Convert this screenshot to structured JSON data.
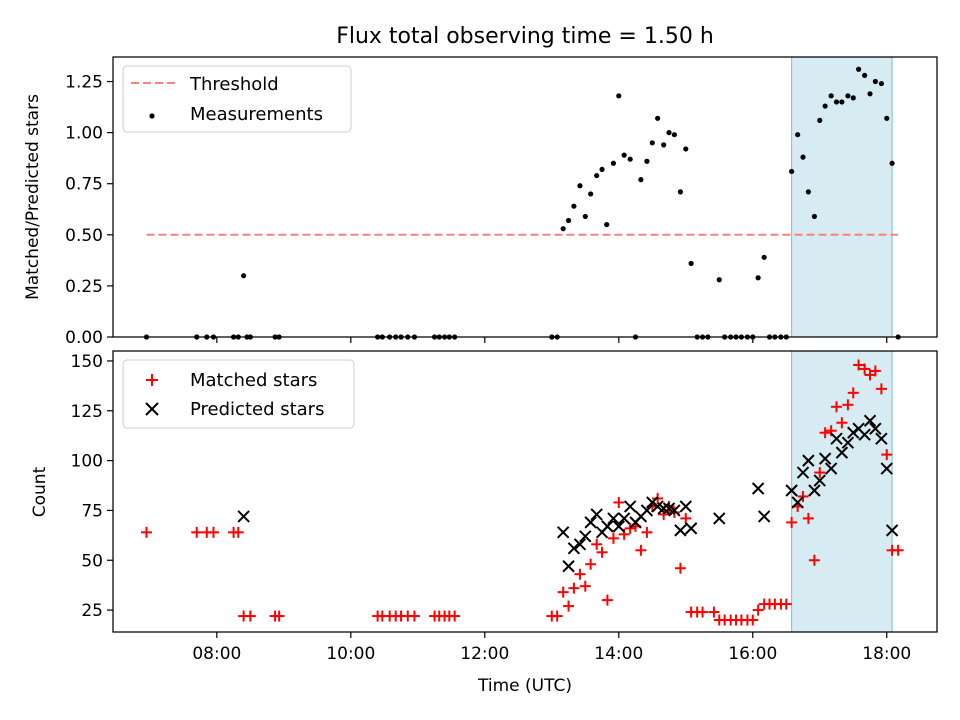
{
  "chart_data": [
    {
      "type": "scatter",
      "title": "Flux total observing time = 1.50 h",
      "ylabel": "Matched/Predicted stars",
      "xlabel": "",
      "xlim": [
        6.45,
        18.75
      ],
      "ylim": [
        0.0,
        1.37
      ],
      "yticks": [
        0.0,
        0.25,
        0.5,
        0.75,
        1.0,
        1.25
      ],
      "ytick_labels": [
        "0.00",
        "0.25",
        "0.50",
        "0.75",
        "1.00",
        "1.25"
      ],
      "legend": {
        "position": "top-left",
        "entries": [
          "Threshold",
          "Measurements"
        ]
      },
      "highlight_band": {
        "x": [
          16.58,
          18.08
        ],
        "color": "#add8e6"
      },
      "threshold": {
        "name": "Threshold",
        "value": 0.5,
        "x": [
          6.95,
          18.17
        ],
        "color": "#ff7f7f",
        "style": "dashed"
      },
      "series": [
        {
          "name": "Measurements",
          "color": "#000000",
          "marker": "dot",
          "points": [
            [
              6.95,
              0
            ],
            [
              7.7,
              0
            ],
            [
              7.85,
              0
            ],
            [
              7.95,
              0
            ],
            [
              8.25,
              0
            ],
            [
              8.32,
              0
            ],
            [
              8.4,
              0.3
            ],
            [
              8.45,
              0
            ],
            [
              8.5,
              0
            ],
            [
              8.87,
              0
            ],
            [
              8.93,
              0
            ],
            [
              10.4,
              0
            ],
            [
              10.47,
              0
            ],
            [
              10.58,
              0
            ],
            [
              10.67,
              0
            ],
            [
              10.75,
              0
            ],
            [
              10.85,
              0
            ],
            [
              10.95,
              0
            ],
            [
              11.25,
              0
            ],
            [
              11.32,
              0
            ],
            [
              11.4,
              0
            ],
            [
              11.47,
              0
            ],
            [
              11.55,
              0
            ],
            [
              13.0,
              0
            ],
            [
              13.08,
              0
            ],
            [
              13.17,
              0.53
            ],
            [
              13.25,
              0.57
            ],
            [
              13.33,
              0.64
            ],
            [
              13.42,
              0.74
            ],
            [
              13.5,
              0.59
            ],
            [
              13.58,
              0.7
            ],
            [
              13.67,
              0.79
            ],
            [
              13.75,
              0.82
            ],
            [
              13.82,
              0.55
            ],
            [
              13.92,
              0.85
            ],
            [
              14.0,
              1.18
            ],
            [
              14.08,
              0.89
            ],
            [
              14.17,
              0.87
            ],
            [
              14.25,
              0
            ],
            [
              14.33,
              0.77
            ],
            [
              14.42,
              0.86
            ],
            [
              14.5,
              0.95
            ],
            [
              14.58,
              1.07
            ],
            [
              14.67,
              0.94
            ],
            [
              14.75,
              1.0
            ],
            [
              14.83,
              0.99
            ],
            [
              14.92,
              0.71
            ],
            [
              15.0,
              0.92
            ],
            [
              15.08,
              0.36
            ],
            [
              15.17,
              0
            ],
            [
              15.25,
              0
            ],
            [
              15.33,
              0
            ],
            [
              15.5,
              0.28
            ],
            [
              15.58,
              0
            ],
            [
              15.67,
              0
            ],
            [
              15.75,
              0
            ],
            [
              15.83,
              0
            ],
            [
              15.92,
              0
            ],
            [
              16.0,
              0
            ],
            [
              16.08,
              0.29
            ],
            [
              16.17,
              0.39
            ],
            [
              16.25,
              0
            ],
            [
              16.33,
              0
            ],
            [
              16.42,
              0
            ],
            [
              16.5,
              0
            ],
            [
              16.58,
              0.81
            ],
            [
              16.67,
              0.99
            ],
            [
              16.75,
              0.88
            ],
            [
              16.83,
              0.71
            ],
            [
              16.92,
              0.59
            ],
            [
              17.0,
              1.06
            ],
            [
              17.08,
              1.13
            ],
            [
              17.17,
              1.18
            ],
            [
              17.25,
              1.15
            ],
            [
              17.33,
              1.15
            ],
            [
              17.42,
              1.18
            ],
            [
              17.5,
              1.17
            ],
            [
              17.58,
              1.31
            ],
            [
              17.67,
              1.28
            ],
            [
              17.75,
              1.19
            ],
            [
              17.83,
              1.25
            ],
            [
              17.92,
              1.24
            ],
            [
              18.0,
              1.07
            ],
            [
              18.08,
              0.85
            ],
            [
              18.17,
              0
            ]
          ]
        }
      ]
    },
    {
      "type": "scatter",
      "title": "",
      "ylabel": "Count",
      "xlabel": "Time (UTC)",
      "xlim": [
        6.45,
        18.75
      ],
      "ylim": [
        14,
        155
      ],
      "xticks": [
        8,
        10,
        12,
        14,
        16,
        18
      ],
      "xtick_labels": [
        "08:00",
        "10:00",
        "12:00",
        "14:00",
        "16:00",
        "18:00"
      ],
      "yticks": [
        25,
        50,
        75,
        100,
        125,
        150
      ],
      "ytick_labels": [
        "25",
        "50",
        "75",
        "100",
        "125",
        "150"
      ],
      "legend": {
        "position": "top-left",
        "entries": [
          "Matched stars",
          "Predicted stars"
        ]
      },
      "highlight_band": {
        "x": [
          16.58,
          18.08
        ],
        "color": "#add8e6"
      },
      "series": [
        {
          "name": "Matched stars",
          "color": "#ff0000",
          "marker": "plus",
          "points": [
            [
              6.95,
              64
            ],
            [
              7.7,
              64
            ],
            [
              7.85,
              64
            ],
            [
              7.95,
              64
            ],
            [
              8.25,
              64
            ],
            [
              8.32,
              64
            ],
            [
              8.4,
              22
            ],
            [
              8.5,
              22
            ],
            [
              8.87,
              22
            ],
            [
              8.93,
              22
            ],
            [
              10.4,
              22
            ],
            [
              10.47,
              22
            ],
            [
              10.58,
              22
            ],
            [
              10.67,
              22
            ],
            [
              10.75,
              22
            ],
            [
              10.85,
              22
            ],
            [
              10.95,
              22
            ],
            [
              11.25,
              22
            ],
            [
              11.32,
              22
            ],
            [
              11.4,
              22
            ],
            [
              11.47,
              22
            ],
            [
              11.55,
              22
            ],
            [
              13.0,
              22
            ],
            [
              13.08,
              22
            ],
            [
              13.17,
              34
            ],
            [
              13.25,
              27
            ],
            [
              13.33,
              36
            ],
            [
              13.42,
              43
            ],
            [
              13.5,
              37
            ],
            [
              13.58,
              48
            ],
            [
              13.67,
              58
            ],
            [
              13.75,
              54
            ],
            [
              13.83,
              30
            ],
            [
              13.92,
              61
            ],
            [
              14.0,
              79
            ],
            [
              14.08,
              63
            ],
            [
              14.17,
              66
            ],
            [
              14.25,
              67
            ],
            [
              14.33,
              55
            ],
            [
              14.42,
              64
            ],
            [
              14.5,
              77
            ],
            [
              14.58,
              81
            ],
            [
              14.67,
              73
            ],
            [
              14.75,
              77
            ],
            [
              14.83,
              74
            ],
            [
              14.92,
              46
            ],
            [
              15.0,
              71
            ],
            [
              15.08,
              24
            ],
            [
              15.17,
              24
            ],
            [
              15.25,
              24
            ],
            [
              15.42,
              24
            ],
            [
              15.5,
              20
            ],
            [
              15.58,
              20
            ],
            [
              15.67,
              20
            ],
            [
              15.75,
              20
            ],
            [
              15.83,
              20
            ],
            [
              15.92,
              20
            ],
            [
              16.0,
              20
            ],
            [
              16.08,
              25
            ],
            [
              16.17,
              28
            ],
            [
              16.25,
              28
            ],
            [
              16.33,
              28
            ],
            [
              16.42,
              28
            ],
            [
              16.5,
              28
            ],
            [
              16.58,
              69
            ],
            [
              16.67,
              77
            ],
            [
              16.75,
              82
            ],
            [
              16.83,
              71
            ],
            [
              16.92,
              50
            ],
            [
              17.0,
              94
            ],
            [
              17.08,
              114
            ],
            [
              17.17,
              115
            ],
            [
              17.25,
              127
            ],
            [
              17.33,
              119
            ],
            [
              17.42,
              128
            ],
            [
              17.5,
              134
            ],
            [
              17.58,
              148
            ],
            [
              17.67,
              146
            ],
            [
              17.75,
              143
            ],
            [
              17.83,
              145
            ],
            [
              17.92,
              136
            ],
            [
              18.0,
              103
            ],
            [
              18.08,
              55
            ],
            [
              18.17,
              55
            ]
          ]
        },
        {
          "name": "Predicted stars",
          "color": "#000000",
          "marker": "x",
          "points": [
            [
              8.4,
              72
            ],
            [
              13.17,
              64
            ],
            [
              13.25,
              47
            ],
            [
              13.33,
              56
            ],
            [
              13.42,
              58
            ],
            [
              13.5,
              62
            ],
            [
              13.58,
              69
            ],
            [
              13.67,
              73
            ],
            [
              13.75,
              64
            ],
            [
              13.83,
              67
            ],
            [
              13.92,
              71
            ],
            [
              14.0,
              67
            ],
            [
              14.08,
              71
            ],
            [
              14.17,
              77
            ],
            [
              14.25,
              69
            ],
            [
              14.33,
              72
            ],
            [
              14.42,
              75
            ],
            [
              14.5,
              79
            ],
            [
              14.58,
              77
            ],
            [
              14.67,
              76
            ],
            [
              14.75,
              76
            ],
            [
              14.83,
              75
            ],
            [
              14.92,
              65
            ],
            [
              15.0,
              77
            ],
            [
              15.08,
              66
            ],
            [
              15.5,
              71
            ],
            [
              16.08,
              86
            ],
            [
              16.17,
              72
            ],
            [
              16.58,
              85
            ],
            [
              16.67,
              79
            ],
            [
              16.75,
              94
            ],
            [
              16.83,
              100
            ],
            [
              16.92,
              85
            ],
            [
              17.0,
              90
            ],
            [
              17.08,
              101
            ],
            [
              17.17,
              96
            ],
            [
              17.25,
              111
            ],
            [
              17.33,
              104
            ],
            [
              17.42,
              109
            ],
            [
              17.5,
              114
            ],
            [
              17.58,
              116
            ],
            [
              17.67,
              113
            ],
            [
              17.75,
              120
            ],
            [
              17.83,
              116
            ],
            [
              17.92,
              111
            ],
            [
              18.0,
              96
            ],
            [
              18.08,
              65
            ]
          ]
        }
      ]
    }
  ]
}
